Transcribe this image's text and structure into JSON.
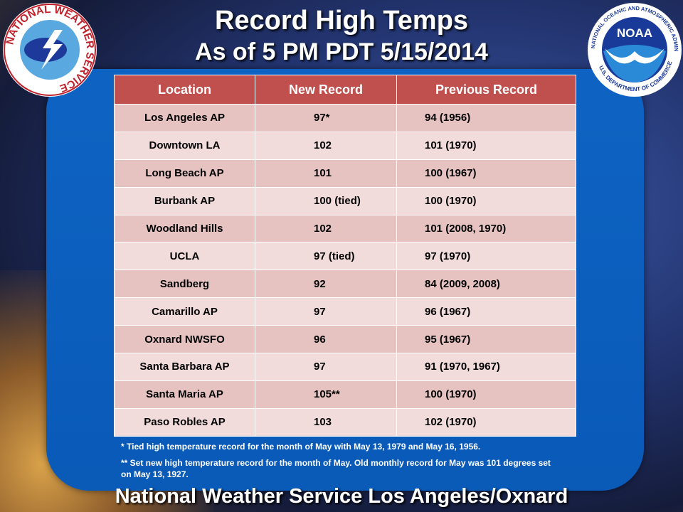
{
  "header": {
    "title": "Record High Temps",
    "subtitle": "As of 5 PM PDT 5/15/2014"
  },
  "logos": {
    "left": "NATIONAL WEATHER SERVICE",
    "right_name": "NOAA",
    "right_ring_top": "NATIONAL OCEANIC AND ATMOSPHERIC ADMINISTRATION",
    "right_ring_bottom": "U.S. DEPARTMENT OF COMMERCE"
  },
  "table": {
    "columns": [
      "Location",
      "New Record",
      "Previous Record"
    ],
    "rows": [
      [
        "Los Angeles AP",
        "97*",
        "94 (1956)"
      ],
      [
        "Downtown LA",
        "102",
        "101 (1970)"
      ],
      [
        "Long Beach AP",
        "101",
        "100 (1967)"
      ],
      [
        "Burbank AP",
        "100 (tied)",
        "100 (1970)"
      ],
      [
        "Woodland Hills",
        "102",
        "101 (2008, 1970)"
      ],
      [
        "UCLA",
        "97 (tied)",
        "97 (1970)"
      ],
      [
        "Sandberg",
        "92",
        "84 (2009, 2008)"
      ],
      [
        "Camarillo AP",
        "97",
        "96 (1967)"
      ],
      [
        "Oxnard NWSFO",
        "96",
        "95 (1967)"
      ],
      [
        "Santa Barbara AP",
        "97",
        "91 (1970, 1967)"
      ],
      [
        "Santa Maria AP",
        "105**",
        "100 (1970)"
      ],
      [
        "Paso Robles AP",
        "103",
        "102 (1970)"
      ]
    ]
  },
  "notes": [
    "* Tied high temperature record for the month of May with May 13, 1979 and May 16, 1956.",
    "** Set new high temperature record for the month of May. Old monthly record for May was 101 degrees set on May 13, 1927."
  ],
  "footer": "National Weather Service Los Angeles/Oxnard"
}
